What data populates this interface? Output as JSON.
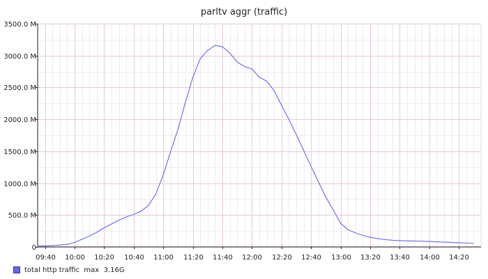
{
  "chart_data": {
    "type": "line",
    "title": "parltv aggr (traffic)",
    "xlabel": "",
    "ylabel": "",
    "x_tick_labels": [
      "09:40",
      "10:00",
      "10:20",
      "10:40",
      "11:00",
      "11:20",
      "11:40",
      "12:00",
      "12:20",
      "12:40",
      "13:00",
      "13:20",
      "13:40",
      "14:00",
      "14:20"
    ],
    "y_tick_labels": [
      "0",
      "500.0 M",
      "1000.0 M",
      "1500.0 M",
      "2000.0 M",
      "2500.0 M",
      "3000.0 M",
      "3500.0 M"
    ],
    "ylim": [
      0,
      3500
    ],
    "y_unit": "M",
    "xlim": [
      "09:35",
      "14:35"
    ],
    "grid": true,
    "legend_position": "bottom-left",
    "series": [
      {
        "name": "total http traffic",
        "legend_label": "total http traffic  max  3.16G",
        "color": "#6666ee",
        "x": [
          "09:35",
          "09:40",
          "09:45",
          "09:50",
          "09:55",
          "10:00",
          "10:05",
          "10:10",
          "10:15",
          "10:20",
          "10:25",
          "10:30",
          "10:35",
          "10:40",
          "10:45",
          "10:50",
          "10:55",
          "11:00",
          "11:05",
          "11:10",
          "11:15",
          "11:20",
          "11:25",
          "11:30",
          "11:35",
          "11:40",
          "11:45",
          "11:50",
          "11:55",
          "12:00",
          "12:05",
          "12:10",
          "12:15",
          "12:20",
          "12:25",
          "12:30",
          "12:35",
          "12:40",
          "12:45",
          "12:50",
          "12:55",
          "13:00",
          "13:05",
          "13:10",
          "13:15",
          "13:20",
          "13:25",
          "13:30",
          "13:35",
          "13:40",
          "13:45",
          "13:50",
          "13:55",
          "14:00",
          "14:05",
          "14:10",
          "14:15",
          "14:20",
          "14:25",
          "14:30"
        ],
        "values": [
          10,
          15,
          20,
          30,
          40,
          70,
          120,
          170,
          230,
          300,
          360,
          420,
          470,
          510,
          560,
          650,
          830,
          1130,
          1500,
          1850,
          2270,
          2660,
          2950,
          3080,
          3160,
          3140,
          3040,
          2900,
          2830,
          2790,
          2660,
          2600,
          2450,
          2220,
          2000,
          1760,
          1510,
          1260,
          1020,
          780,
          580,
          370,
          270,
          220,
          180,
          150,
          130,
          115,
          105,
          100,
          95,
          92,
          90,
          85,
          80,
          75,
          70,
          65,
          60,
          55
        ]
      }
    ]
  }
}
